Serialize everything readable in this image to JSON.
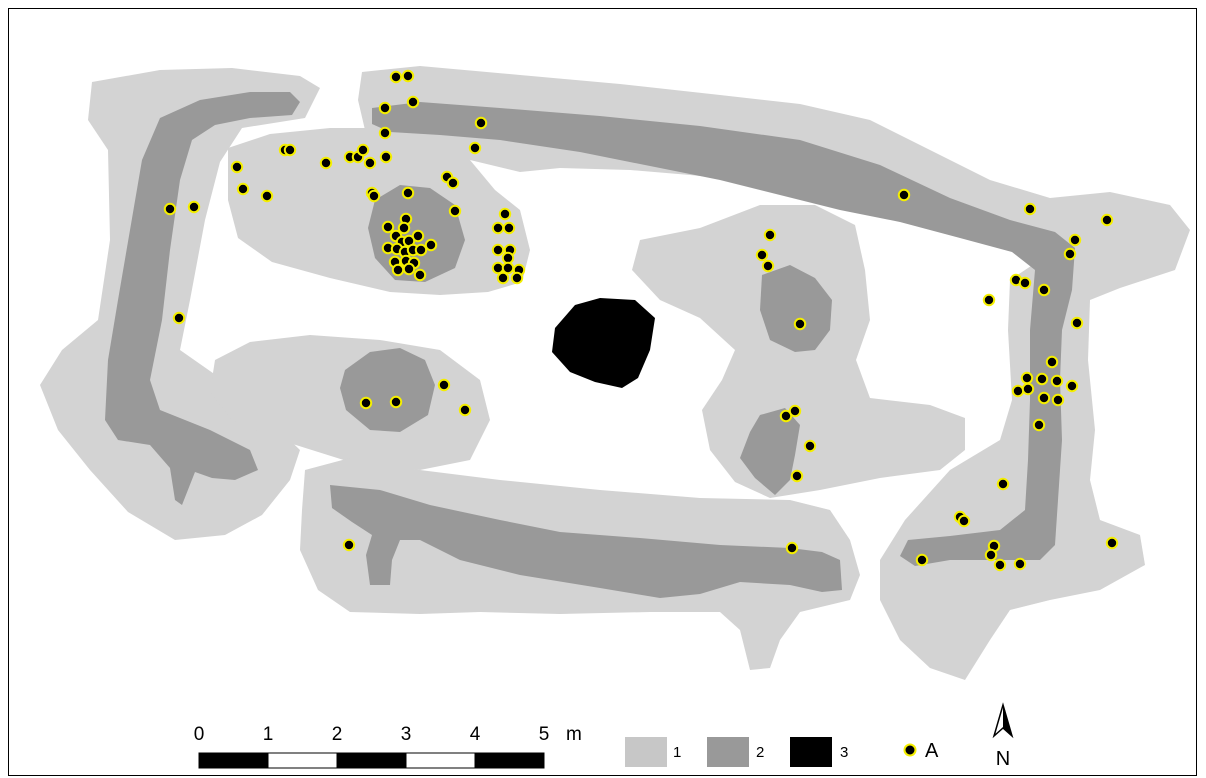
{
  "colors": {
    "zone1": "#d3d3d3",
    "zone2": "#999999",
    "zone3": "#000000",
    "point_fill": "#000000",
    "point_ring": "#f5ef00"
  },
  "scale_bar": {
    "ticks": [
      "0",
      "1",
      "2",
      "3",
      "4",
      "5"
    ],
    "unit": "m"
  },
  "legend": {
    "items": [
      {
        "swatch": "zone1",
        "label": "1"
      },
      {
        "swatch": "zone2",
        "label": "2"
      },
      {
        "swatch": "zone3",
        "label": "3"
      },
      {
        "swatch": "point",
        "label": "A"
      }
    ]
  },
  "north_arrow": {
    "icon": "north-arrow-icon",
    "label": "N"
  },
  "finds_count_note": "",
  "point_count": 136
}
